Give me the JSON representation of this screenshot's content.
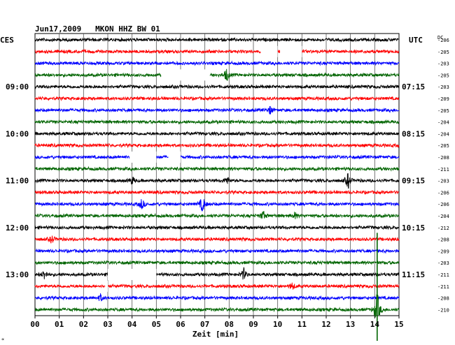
{
  "chart_data": {
    "type": "line",
    "title": "Jun17,2009   MKON HHZ BW 01",
    "left_timezone_label": "CES",
    "right_timezone_label": "UTC",
    "right_value_header": "DC",
    "xlabel": "Zeit [min]",
    "x_ticks": [
      "00",
      "01",
      "02",
      "03",
      "04",
      "05",
      "06",
      "07",
      "08",
      "09",
      "10",
      "11",
      "12",
      "13",
      "14",
      "15"
    ],
    "xlim": [
      0,
      15
    ],
    "grid": true,
    "trace_colors": [
      "#000000",
      "#ff0000",
      "#0000ff",
      "#006400"
    ],
    "left_time_labels": [
      {
        "label": "09:00",
        "trace": 4
      },
      {
        "label": "10:00",
        "trace": 8
      },
      {
        "label": "11:00",
        "trace": 12
      },
      {
        "label": "12:00",
        "trace": 16
      },
      {
        "label": "13:00",
        "trace": 20
      }
    ],
    "right_time_labels": [
      {
        "label": "07:15",
        "trace": 4
      },
      {
        "label": "08:15",
        "trace": 8
      },
      {
        "label": "09:15",
        "trace": 12
      },
      {
        "label": "10:15",
        "trace": 16
      },
      {
        "label": "11:15",
        "trace": 20
      }
    ],
    "dc_offsets": [
      "-206",
      "-205",
      "-203",
      "-205",
      "-203",
      "-209",
      "-205",
      "-204",
      "-204",
      "-205",
      "-208",
      "-211",
      "-203",
      "-206",
      "-206",
      "-204",
      "-212",
      "-208",
      "-209",
      "-203",
      "-211",
      "-211",
      "-208",
      "-210"
    ],
    "gaps": [
      {
        "trace": 1,
        "from": 9.3,
        "to": 10.0
      },
      {
        "trace": 1,
        "from": 10.1,
        "to": 11.0
      },
      {
        "trace": 3,
        "from": 5.2,
        "to": 7.2
      },
      {
        "trace": 10,
        "from": 3.9,
        "to": 5.0
      },
      {
        "trace": 10,
        "from": 5.5,
        "to": 6.0
      },
      {
        "trace": 20,
        "from": 3.0,
        "to": 5.0
      },
      {
        "trace": 21,
        "from": 2.9,
        "to": 3.0
      }
    ],
    "events": [
      {
        "trace": 3,
        "x": 7.9,
        "amp": 10
      },
      {
        "trace": 6,
        "x": 9.7,
        "amp": 6
      },
      {
        "trace": 12,
        "x": 4.0,
        "amp": 6
      },
      {
        "trace": 12,
        "x": 7.9,
        "amp": 6
      },
      {
        "trace": 12,
        "x": 12.9,
        "amp": 12
      },
      {
        "trace": 14,
        "x": 4.4,
        "amp": 8
      },
      {
        "trace": 14,
        "x": 6.9,
        "amp": 13
      },
      {
        "trace": 15,
        "x": 9.4,
        "amp": 7
      },
      {
        "trace": 15,
        "x": 10.7,
        "amp": 5
      },
      {
        "trace": 17,
        "x": 0.7,
        "amp": 6
      },
      {
        "trace": 20,
        "x": 0.4,
        "amp": 8
      },
      {
        "trace": 20,
        "x": 8.6,
        "amp": 9
      },
      {
        "trace": 21,
        "x": 10.6,
        "amp": 5
      },
      {
        "trace": 22,
        "x": 2.7,
        "amp": 5
      },
      {
        "trace": 23,
        "x": 14.1,
        "amp": 30
      }
    ],
    "corner_mark": "∝"
  }
}
